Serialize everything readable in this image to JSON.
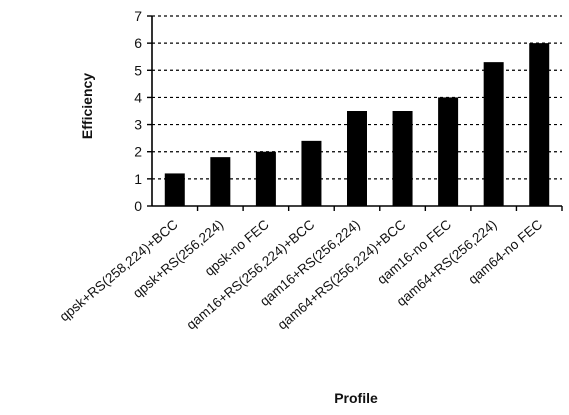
{
  "chart_data": {
    "type": "bar",
    "categories": [
      "qpsk+RS(258,224)+BCC",
      "qpsk+RS(256,224)",
      "qpsk-no FEC",
      "qam16+RS(256,224)+BCC",
      "qam16+RS(256,224)",
      "qam64+RS(256,224)+BCC",
      "qam16-no FEC",
      "qam64+RS(256,224)",
      "qam64-no FEC"
    ],
    "values": [
      1.2,
      1.8,
      2.0,
      2.4,
      3.5,
      3.5,
      4.0,
      5.3,
      6.0
    ],
    "xlabel": "Profile",
    "ylabel": "Efficiency",
    "ylim": [
      0,
      7
    ],
    "yticks": [
      0,
      1,
      2,
      3,
      4,
      5,
      6,
      7
    ],
    "grid": true,
    "legend": "none",
    "colors": {
      "bar": "#000000",
      "axis": "#000000",
      "grid": "#000000"
    }
  }
}
